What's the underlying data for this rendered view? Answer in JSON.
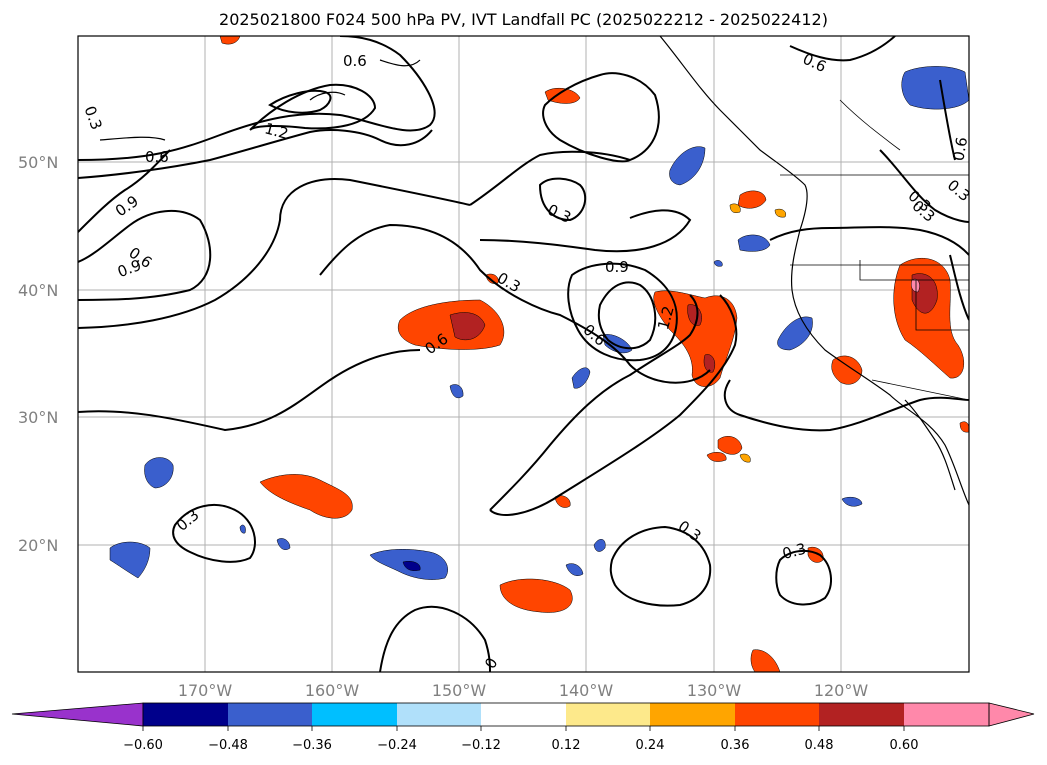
{
  "title": "2025021800 F024 500 hPa PV, IVT Landfall PC (2025022212 - 2025022412)",
  "map": {
    "lat_labels": [
      "50°N",
      "40°N",
      "30°N",
      "20°N"
    ],
    "lon_labels": [
      "170°W",
      "160°W",
      "150°W",
      "140°W",
      "130°W",
      "120°W"
    ],
    "contour_labels": [
      "0.3",
      "0.6",
      "1.2",
      "0.6",
      "0.9",
      "0.6",
      "0.9",
      "0.3",
      "0.9",
      "0.3",
      "1.2",
      "0.6",
      "0.6",
      "0.3",
      "0.3",
      "0.3",
      "0.3",
      "0.6",
      "0.6",
      "0.3",
      "0.3",
      "0"
    ],
    "colors": {
      "positive": [
        "#fde98b",
        "#ffa500",
        "#ff4500",
        "#b22222",
        "#ff88aa"
      ],
      "negative": [
        "#b0e0fa",
        "#00bfff",
        "#3a5fcd",
        "#00008b",
        "#9932cc"
      ]
    }
  },
  "colorbar": {
    "tick_labels": [
      "−0.60",
      "−0.48",
      "−0.36",
      "−0.24",
      "−0.12",
      "0.12",
      "0.24",
      "0.36",
      "0.48",
      "0.60"
    ],
    "colors": [
      "#9932cc",
      "#00008b",
      "#3a5fcd",
      "#00bfff",
      "#b0e0fa",
      "#ffffff",
      "#fde98b",
      "#ffa500",
      "#ff4500",
      "#b22222",
      "#ff88aa"
    ]
  }
}
